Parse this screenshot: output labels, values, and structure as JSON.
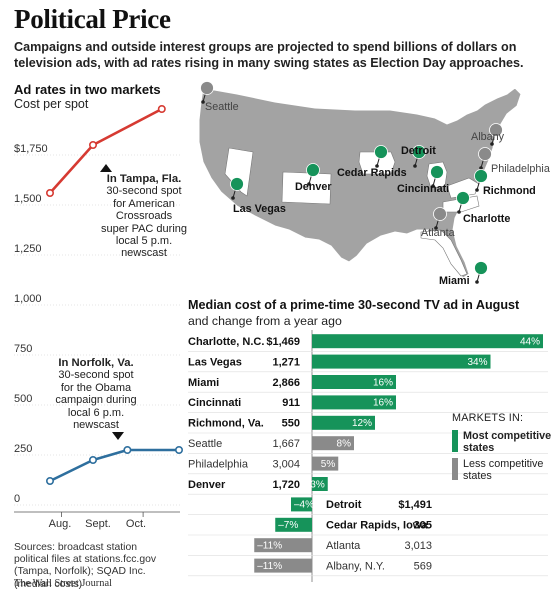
{
  "title": "Political Price",
  "subtitle": "Campaigns and outside interest groups are projected to spend billions of dollars on television ads, with ad rates rising in many swing states as Election Day approaches.",
  "colors": {
    "competitive": "#16935a",
    "less": "#8a8a8a",
    "tampa_line": "#d63a32",
    "norfolk_line": "#2e6f9e",
    "map_land": "#a3a3a3",
    "map_highlight": "#ffffff"
  },
  "chart_data": [
    {
      "type": "line",
      "title": "Ad rates in two markets",
      "ylabel": "Cost per spot",
      "categories": [
        "Aug.",
        "Sept.",
        "Oct."
      ],
      "ylim": [
        0,
        2000
      ],
      "yticks": [
        0,
        250,
        500,
        750,
        1000,
        1250,
        1500,
        1750
      ],
      "ytick_labels": [
        "0",
        "250",
        "500",
        "750",
        "1,000",
        "1,250",
        "1,500",
        "$1,750"
      ],
      "series": [
        {
          "name": "In Tampa, Fla.",
          "note": "30-second spot for American Crossroads super PAC during local 5 p.m. newscast",
          "x": [
            0,
            1,
            2.6
          ],
          "values": [
            1560,
            1800,
            1980
          ]
        },
        {
          "name": "In Norfolk, Va.",
          "note": "30-second spot for the Obama campaign during local 6 p.m. newscast",
          "x": [
            0,
            1,
            1.8,
            3
          ],
          "values": [
            120,
            225,
            275,
            275
          ]
        }
      ]
    },
    {
      "type": "bar",
      "title": "Median cost of a prime-time 30-second TV ad in August",
      "subtitle": "and change from a year ago",
      "legend_title": "MARKETS IN:",
      "legend": [
        {
          "label": "Most competitive states",
          "group": "competitive"
        },
        {
          "label": "Less competitive states",
          "group": "less"
        }
      ],
      "xlim": [
        -15,
        45
      ],
      "rows": [
        {
          "market": "Charlotte, N.C.",
          "cost": "$1,469",
          "change": 44,
          "label": "44%",
          "group": "competitive"
        },
        {
          "market": "Las Vegas",
          "cost": "1,271",
          "change": 34,
          "label": "34%",
          "group": "competitive"
        },
        {
          "market": "Miami",
          "cost": "2,866",
          "change": 16,
          "label": "16%",
          "group": "competitive"
        },
        {
          "market": "Cincinnati",
          "cost": "911",
          "change": 16,
          "label": "16%",
          "group": "competitive"
        },
        {
          "market": "Richmond, Va.",
          "cost": "550",
          "change": 12,
          "label": "12%",
          "group": "competitive"
        },
        {
          "market": "Seattle",
          "cost": "1,667",
          "change": 8,
          "label": "8%",
          "group": "less"
        },
        {
          "market": "Philadelphia",
          "cost": "3,004",
          "change": 5,
          "label": "5%",
          "group": "less"
        },
        {
          "market": "Denver",
          "cost": "1,720",
          "change": 3,
          "label": "3%",
          "group": "competitive"
        },
        {
          "market": "Detroit",
          "cost": "$1,491",
          "change": -4,
          "label": "–4%",
          "group": "competitive"
        },
        {
          "market": "Cedar Rapids, Iowa",
          "cost": "305",
          "change": -7,
          "label": "–7%",
          "group": "competitive"
        },
        {
          "market": "Atlanta",
          "cost": "3,013",
          "change": -11,
          "label": "–11%",
          "group": "less"
        },
        {
          "market": "Albany, N.Y.",
          "cost": "569",
          "change": -11,
          "label": "–11%",
          "group": "less"
        }
      ]
    }
  ],
  "map": {
    "markers": [
      {
        "name": "Seattle",
        "group": "less"
      },
      {
        "name": "Las Vegas",
        "group": "competitive"
      },
      {
        "name": "Denver",
        "group": "competitive"
      },
      {
        "name": "Cedar Rapids",
        "group": "competitive"
      },
      {
        "name": "Detroit",
        "group": "competitive"
      },
      {
        "name": "Cincinnati",
        "group": "competitive"
      },
      {
        "name": "Albany",
        "group": "less"
      },
      {
        "name": "Philadelphia",
        "group": "less"
      },
      {
        "name": "Richmond",
        "group": "competitive"
      },
      {
        "name": "Charlotte",
        "group": "competitive"
      },
      {
        "name": "Atlanta",
        "group": "less"
      },
      {
        "name": "Miami",
        "group": "competitive"
      }
    ]
  },
  "sources": "Sources: broadcast station political files at stations.fcc.gov (Tampa, Norfolk); SQAD Inc. (median costs)",
  "credit": "The Wall Street Journal"
}
